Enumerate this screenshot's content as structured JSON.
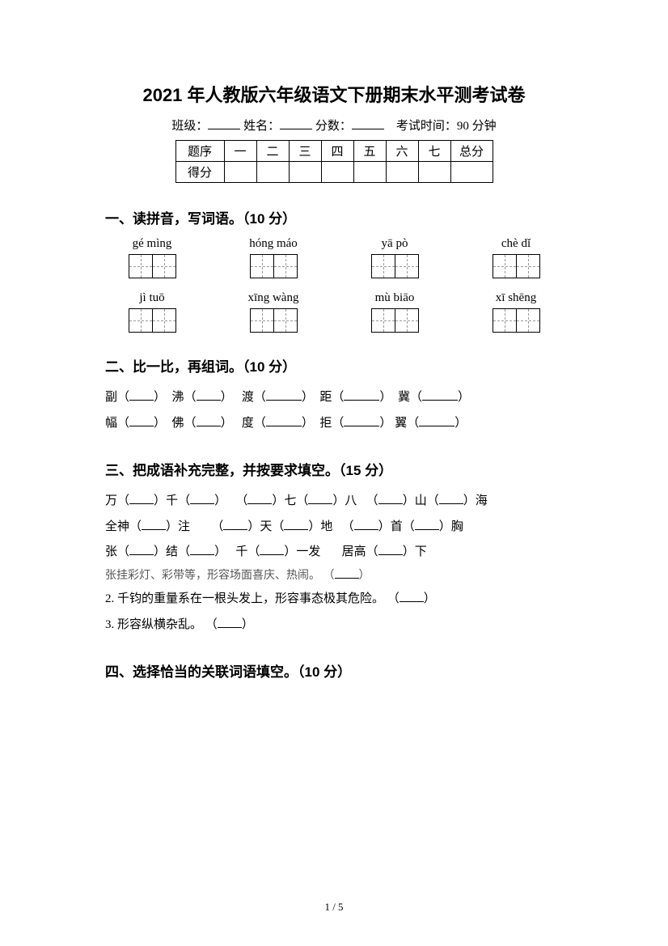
{
  "title": "2021 年人教版六年级语文下册期末水平测考试卷",
  "info": {
    "class_label": "班级：",
    "name_label": "姓名：",
    "score_label": "分数：",
    "time_label": "考试时间：90 分钟"
  },
  "score_table": {
    "row1_label": "题序",
    "row2_label": "得分",
    "cols": [
      "一",
      "二",
      "三",
      "四",
      "五",
      "六",
      "七"
    ],
    "total": "总分"
  },
  "section1": {
    "title": "一、读拼音，写词语。（10 分）",
    "pinyin_row1": [
      "gé mìng",
      "hóng máo",
      "yā pò",
      "chè dǐ"
    ],
    "pinyin_row2": [
      "jì   tuō",
      "xīng wàng",
      "mù biāo",
      "xī shēng"
    ]
  },
  "section2": {
    "title": "二、比一比，再组词。（10 分）",
    "row1": [
      "副",
      "沸",
      "渡",
      "距",
      "冀"
    ],
    "row2": [
      "幅",
      "佛",
      "度",
      "拒",
      "翼"
    ]
  },
  "section3": {
    "title": "三、把成语补充完整，并按要求填空。（15 分）",
    "r1a": "万",
    "r1b": "千",
    "r1c": "七",
    "r1d": "八",
    "r1e": "山",
    "r1f": "海",
    "r2a": "全神",
    "r2b": "注",
    "r2c": "天",
    "r2d": "地",
    "r2e": "首",
    "r2f": "胸",
    "r3a": "张",
    "r3b": "结",
    "r3c": "千",
    "r3d": "一发",
    "r3e": "居高",
    "r3f": "下",
    "desc1": "张挂彩灯、彩带等，形容场面喜庆、热闹。",
    "desc2": "2. 千钧的重量系在一根头发上，形容事态极其危险。",
    "desc3": "3. 形容纵横杂乱。"
  },
  "section4": {
    "title": "四、选择恰当的关联词语填空。（10 分）"
  },
  "footer": "1 / 5"
}
